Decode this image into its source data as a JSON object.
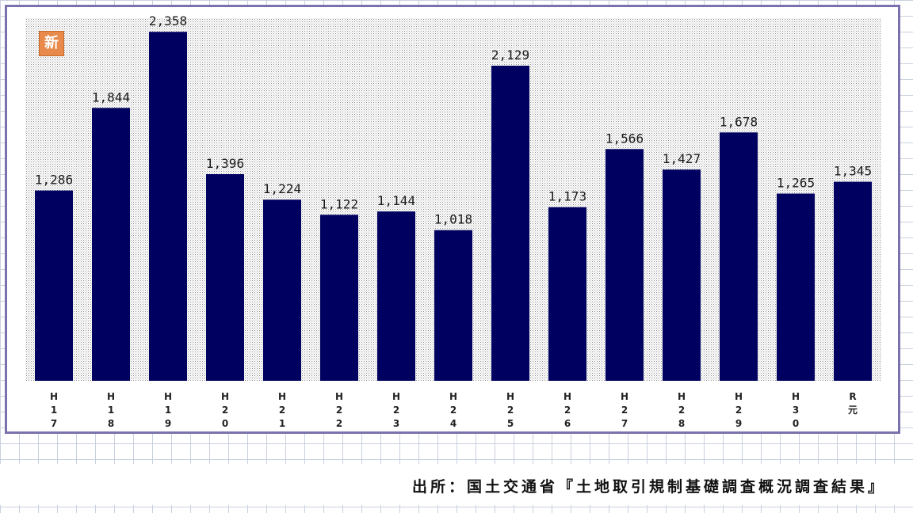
{
  "badge": {
    "label": "新"
  },
  "source": {
    "text": "出所：国土交通省『土地取引規制基礎調査概況調査結果』"
  },
  "colors": {
    "bar": "#000060",
    "frame": "#7a72ad",
    "badge": "#e88a4c"
  },
  "chart_data": {
    "type": "bar",
    "title": "",
    "xlabel": "",
    "ylabel": "",
    "ylim": [
      0,
      2450
    ],
    "grid": false,
    "categories": [
      "H17",
      "H18",
      "H19",
      "H20",
      "H21",
      "H22",
      "H23",
      "H24",
      "H25",
      "H26",
      "H27",
      "H28",
      "H29",
      "H30",
      "R元"
    ],
    "tick_lines": [
      [
        "H",
        "1",
        "7"
      ],
      [
        "H",
        "1",
        "8"
      ],
      [
        "H",
        "1",
        "9"
      ],
      [
        "H",
        "2",
        "0"
      ],
      [
        "H",
        "2",
        "1"
      ],
      [
        "H",
        "2",
        "2"
      ],
      [
        "H",
        "2",
        "3"
      ],
      [
        "H",
        "2",
        "4"
      ],
      [
        "H",
        "2",
        "5"
      ],
      [
        "H",
        "2",
        "6"
      ],
      [
        "H",
        "2",
        "7"
      ],
      [
        "H",
        "2",
        "8"
      ],
      [
        "H",
        "2",
        "9"
      ],
      [
        "H",
        "3",
        "0"
      ],
      [
        "R",
        "元"
      ]
    ],
    "values": [
      1286,
      1844,
      2358,
      1396,
      1224,
      1122,
      1144,
      1018,
      2129,
      1173,
      1566,
      1427,
      1678,
      1265,
      1345
    ],
    "value_labels": [
      "1,286",
      "1,844",
      "2,358",
      "1,396",
      "1,224",
      "1,122",
      "1,144",
      "1,018",
      "2,129",
      "1,173",
      "1,566",
      "1,427",
      "1,678",
      "1,265",
      "1,345"
    ]
  }
}
